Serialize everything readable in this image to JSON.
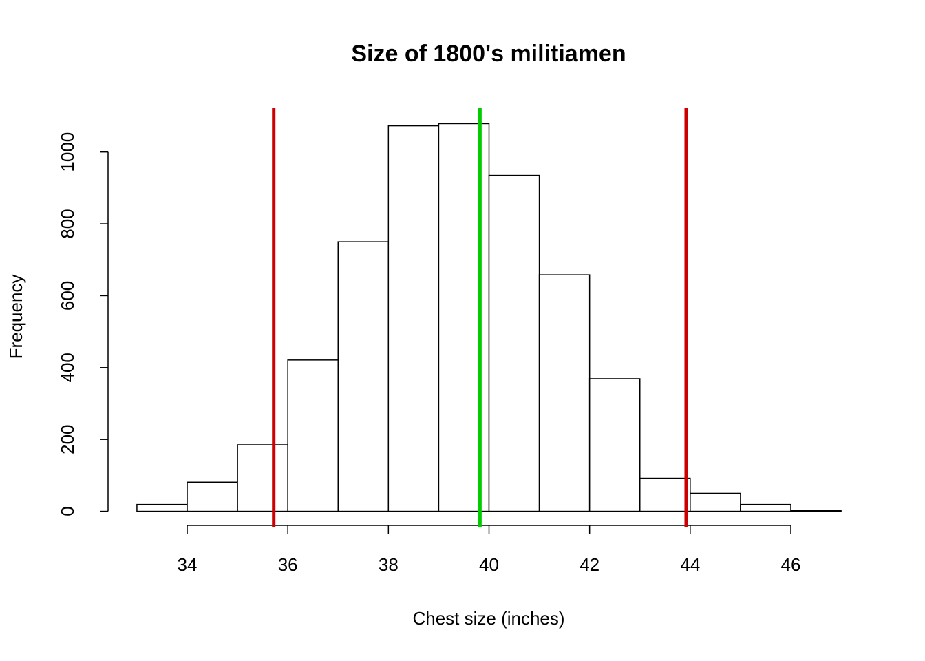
{
  "chart_data": {
    "type": "histogram",
    "title": "Size of 1800's militiamen",
    "xlabel": "Chest size (inches)",
    "ylabel": "Frequency",
    "bins": [
      33,
      34,
      35,
      36,
      37,
      38,
      39,
      40,
      41,
      42,
      43,
      44,
      45,
      46,
      47
    ],
    "values": [
      19,
      81,
      185,
      421,
      750,
      1073,
      1079,
      935,
      658,
      369,
      92,
      50,
      19,
      2
    ],
    "color": "#ffffff",
    "edgecolor": "#000000",
    "xlim": [
      32.44,
      47.56
    ],
    "ylim": [
      -43,
      1122
    ],
    "xticks": [
      34,
      36,
      38,
      40,
      42,
      44,
      46
    ],
    "yticks": [
      0,
      200,
      400,
      600,
      800,
      1000
    ],
    "vlines": [
      {
        "x": 35.72,
        "color": "#cc0000"
      },
      {
        "x": 39.82,
        "color": "#00cc00"
      },
      {
        "x": 43.92,
        "color": "#cc0000"
      }
    ]
  }
}
